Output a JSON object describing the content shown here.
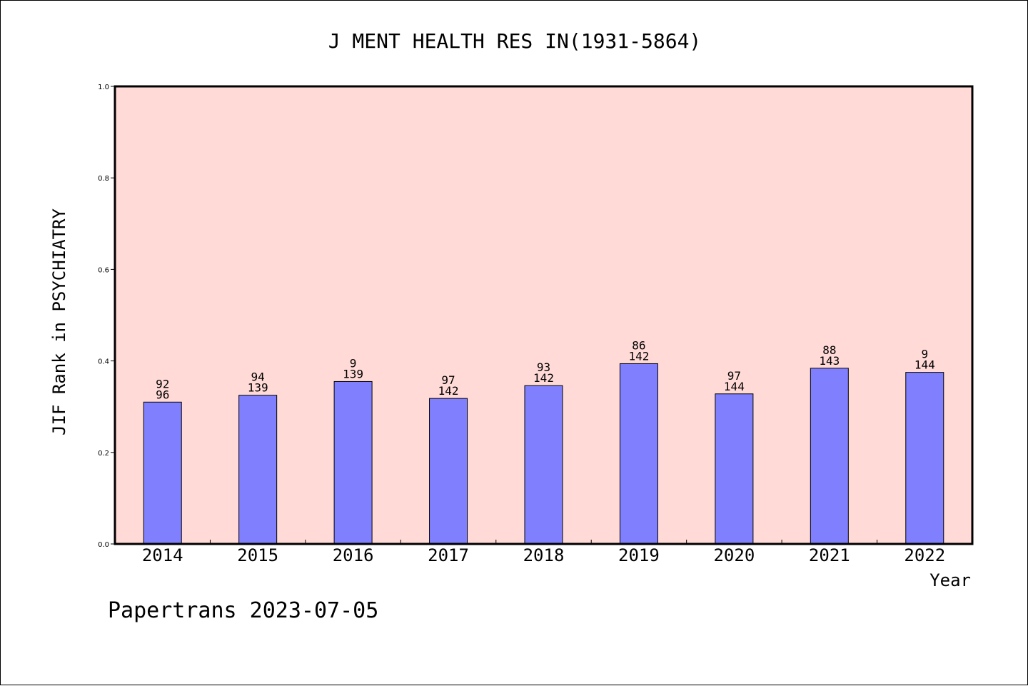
{
  "chart_data": {
    "type": "bar",
    "title": "J MENT HEALTH RES IN(1931-5864)",
    "xlabel": "Year",
    "ylabel": "JIF Rank in PSYCHIATRY",
    "footer": "Papertrans 2023-07-05",
    "ylim": [
      0,
      1.0
    ],
    "yticks": [
      "0.0",
      "0.2",
      "0.4",
      "0.6",
      "0.8",
      "1.0"
    ],
    "categories": [
      "2014",
      "2015",
      "2016",
      "2017",
      "2018",
      "2019",
      "2020",
      "2021",
      "2022"
    ],
    "values": [
      0.31,
      0.325,
      0.355,
      0.318,
      0.346,
      0.394,
      0.328,
      0.384,
      0.375
    ],
    "rank_labels": [
      "92",
      "94",
      "9",
      "97",
      "93",
      "86",
      "97",
      "88",
      "9"
    ],
    "total_labels": [
      "96",
      "139",
      "139",
      "142",
      "142",
      "142",
      "144",
      "143",
      "144"
    ],
    "grid": false,
    "colors": {
      "plot_bg": "#ffdad7",
      "bar_fill": "#8080ff",
      "bar_stroke": "#000000"
    }
  }
}
